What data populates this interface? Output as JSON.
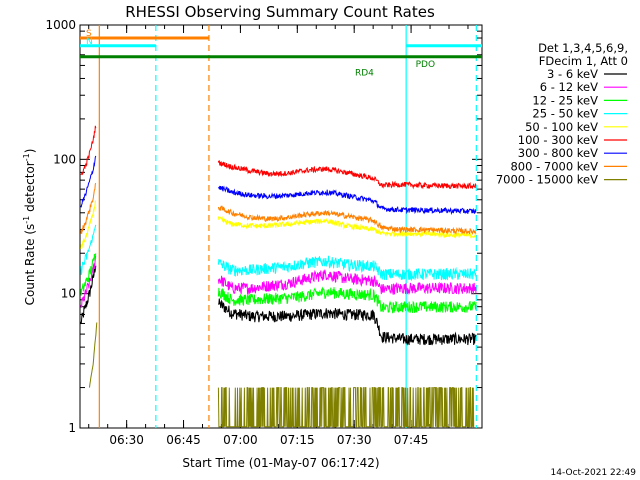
{
  "chart_data": {
    "type": "line",
    "title": "RHESSI Observing Summary Count Rates",
    "xlabel": "Start Time (01-May-07 06:17:42)",
    "ylabel_main": "Count Rate (s",
    "ylabel_sup1": "-1",
    "ylabel_mid": " detector",
    "ylabel_sup2": "-1",
    "ylabel_end": ")",
    "y_scale": "log",
    "ylim": [
      1,
      1000
    ],
    "xlim_minutes": [
      0,
      106
    ],
    "y_ticks": [
      {
        "value": 1000,
        "label": "1000"
      },
      {
        "value": 100,
        "label": "100"
      },
      {
        "value": 10,
        "label": "10"
      },
      {
        "value": 1,
        "label": "1"
      }
    ],
    "x_ticks": [
      {
        "minute": 12.3,
        "label": "06:30"
      },
      {
        "minute": 27.3,
        "label": "06:45"
      },
      {
        "minute": 42.3,
        "label": "07:00"
      },
      {
        "minute": 57.3,
        "label": "07:15"
      },
      {
        "minute": 72.3,
        "label": "07:30"
      },
      {
        "minute": 87.3,
        "label": "07:45"
      }
    ],
    "legend_header": [
      "Det 1,3,4,5,6,9,",
      "FDecim 1, Att 0"
    ],
    "series": [
      {
        "name": "3 - 6 keV",
        "color": "#000000",
        "segments": [
          {
            "x": [
              0.2,
              1.5,
              2.5,
              3.5,
              4.2
            ],
            "y": [
              6,
              8,
              10,
              13,
              17
            ]
          },
          {
            "x": [
              36.5,
              40,
              45,
              50,
              55,
              60,
              65,
              70,
              77.5,
              79.5,
              85,
              90,
              104.5
            ],
            "y": [
              8.5,
              7.2,
              6.8,
              6.8,
              6.8,
              7.0,
              7.2,
              7.0,
              7.0,
              4.8,
              4.6,
              4.6,
              4.6
            ]
          }
        ]
      },
      {
        "name": "6 - 12 keV",
        "color": "#ff00ff",
        "segments": [
          {
            "x": [
              0.2,
              1.5,
              2.5,
              3.5,
              4.2
            ],
            "y": [
              8,
              10,
              12,
              15,
              19
            ]
          },
          {
            "x": [
              36.5,
              40,
              45,
              50,
              55,
              60,
              65,
              70,
              77.5,
              79.5,
              85,
              90,
              104.5
            ],
            "y": [
              13,
              11,
              11,
              11.5,
              12,
              13,
              14,
              13,
              12.5,
              10.8,
              11,
              11,
              11
            ]
          }
        ]
      },
      {
        "name": "12 - 25 keV",
        "color": "#00ff00",
        "segments": [
          {
            "x": [
              0.2,
              1.5,
              2.5,
              3.5,
              4.2
            ],
            "y": [
              10,
              12,
              14,
              17,
              21
            ]
          },
          {
            "x": [
              36.5,
              40,
              45,
              50,
              55,
              60,
              65,
              70,
              77.5,
              79.5,
              85,
              90,
              104.5
            ],
            "y": [
              10.5,
              9,
              9,
              9.2,
              9.3,
              9.7,
              10.3,
              10,
              9.8,
              7.8,
              8,
              8,
              8
            ]
          }
        ]
      },
      {
        "name": "25 - 50 keV",
        "color": "#00ffff",
        "segments": [
          {
            "x": [
              0.2,
              1.5,
              2.5,
              3.5,
              4.2
            ],
            "y": [
              15,
              18,
              22,
              27,
              34
            ]
          },
          {
            "x": [
              36.5,
              40,
              45,
              50,
              55,
              60,
              65,
              70,
              77.5,
              79.5,
              85,
              90,
              104.5
            ],
            "y": [
              17,
              15,
              15,
              15.5,
              16,
              17,
              17.5,
              16.5,
              16,
              14,
              14,
              14,
              14
            ]
          }
        ]
      },
      {
        "name": "50 - 100 keV",
        "color": "#ffff00",
        "segments": [
          {
            "x": [
              0.2,
              1.5,
              2.5,
              3.5,
              4.2
            ],
            "y": [
              22,
              26,
              32,
              40,
              50
            ]
          },
          {
            "x": [
              36.5,
              40,
              45,
              50,
              55,
              60,
              65,
              70,
              77.5,
              79.5,
              85,
              90,
              104.5
            ],
            "y": [
              36,
              33,
              32,
              32,
              33,
              34,
              35,
              32,
              30,
              28,
              28,
              28,
              27
            ]
          }
        ]
      },
      {
        "name": "100 - 300 keV",
        "color": "#ff0000",
        "segments": [
          {
            "x": [
              0.2,
              1.5,
              2.5,
              3.5,
              4.2
            ],
            "y": [
              75,
              90,
              110,
              140,
              180
            ]
          },
          {
            "x": [
              36.5,
              40,
              45,
              50,
              55,
              60,
              65,
              70,
              77.5,
              79.5,
              85,
              90,
              104.5
            ],
            "y": [
              95,
              88,
              82,
              78,
              79,
              83,
              85,
              80,
              72,
              64,
              65,
              64,
              63
            ]
          }
        ]
      },
      {
        "name": "300 - 800 keV",
        "color": "#0000ff",
        "segments": [
          {
            "x": [
              0.2,
              1.5,
              2.5,
              3.5,
              4.2
            ],
            "y": [
              45,
              55,
              68,
              85,
              108
            ]
          },
          {
            "x": [
              36.5,
              40,
              45,
              50,
              55,
              60,
              65,
              70,
              77.5,
              79.5,
              85,
              90,
              104.5
            ],
            "y": [
              62,
              57,
              54,
              53,
              54,
              56,
              57,
              54,
              49,
              43,
              42,
              42,
              41
            ]
          }
        ]
      },
      {
        "name": "800 - 7000 keV",
        "color": "#ff8000",
        "segments": [
          {
            "x": [
              0.2,
              1.5,
              2.5,
              3.5,
              4.2
            ],
            "y": [
              28,
              34,
              42,
              52,
              66
            ]
          },
          {
            "x": [
              36.5,
              40,
              45,
              50,
              55,
              60,
              65,
              70,
              77.5,
              79.5,
              85,
              90,
              104.5
            ],
            "y": [
              44,
              40,
              37,
              36,
              37,
              39,
              40,
              38,
              35,
              31,
              30,
              30,
              29
            ]
          }
        ]
      },
      {
        "name": "7000 - 15000 keV",
        "color": "#808000",
        "segments": [
          {
            "x": [
              2.5,
              3.5,
              4.2,
              4.5
            ],
            "y": [
              2,
              3,
              5,
              6.5
            ]
          },
          {
            "x": [
              36.5,
              40,
              50,
              60,
              70,
              80,
              90,
              104
            ],
            "y": [
              1.6,
              1.6,
              1.5,
              1.6,
              1.6,
              1.5,
              1.5,
              1.5
            ]
          }
        ]
      }
    ],
    "attenuator_bars": [
      {
        "label": "S",
        "color": "#ff8000",
        "y": 800,
        "x_start": 0,
        "x_end": 34
      },
      {
        "label": "N",
        "color": "#00ffff",
        "y": 700,
        "x_start": 0,
        "x_end": 20
      },
      {
        "label": "",
        "color": "#00ffff",
        "y": 700,
        "x_start": 86,
        "x_end": 106
      },
      {
        "label": "",
        "color": "#008000",
        "y": 580,
        "x_start": 0,
        "x_end": 106
      }
    ],
    "annotations": [
      {
        "text": "RD4",
        "color": "#008000",
        "x": 77.5,
        "y": 500
      },
      {
        "text": "PDO",
        "color": "#008000",
        "x": 88.5,
        "y": 580
      }
    ],
    "vlines": [
      {
        "x": 5.1,
        "color": "#ff8000",
        "dash": false
      },
      {
        "x": 20.0,
        "color": "#00ffff",
        "dash": true
      },
      {
        "x": 34.0,
        "color": "#ff8000",
        "dash": true
      },
      {
        "x": 86.0,
        "color": "#00ffff",
        "dash": false
      },
      {
        "x": 104.5,
        "color": "#00ffff",
        "dash": true
      }
    ],
    "footer_timestamp": "14-Oct-2021 22:49"
  }
}
